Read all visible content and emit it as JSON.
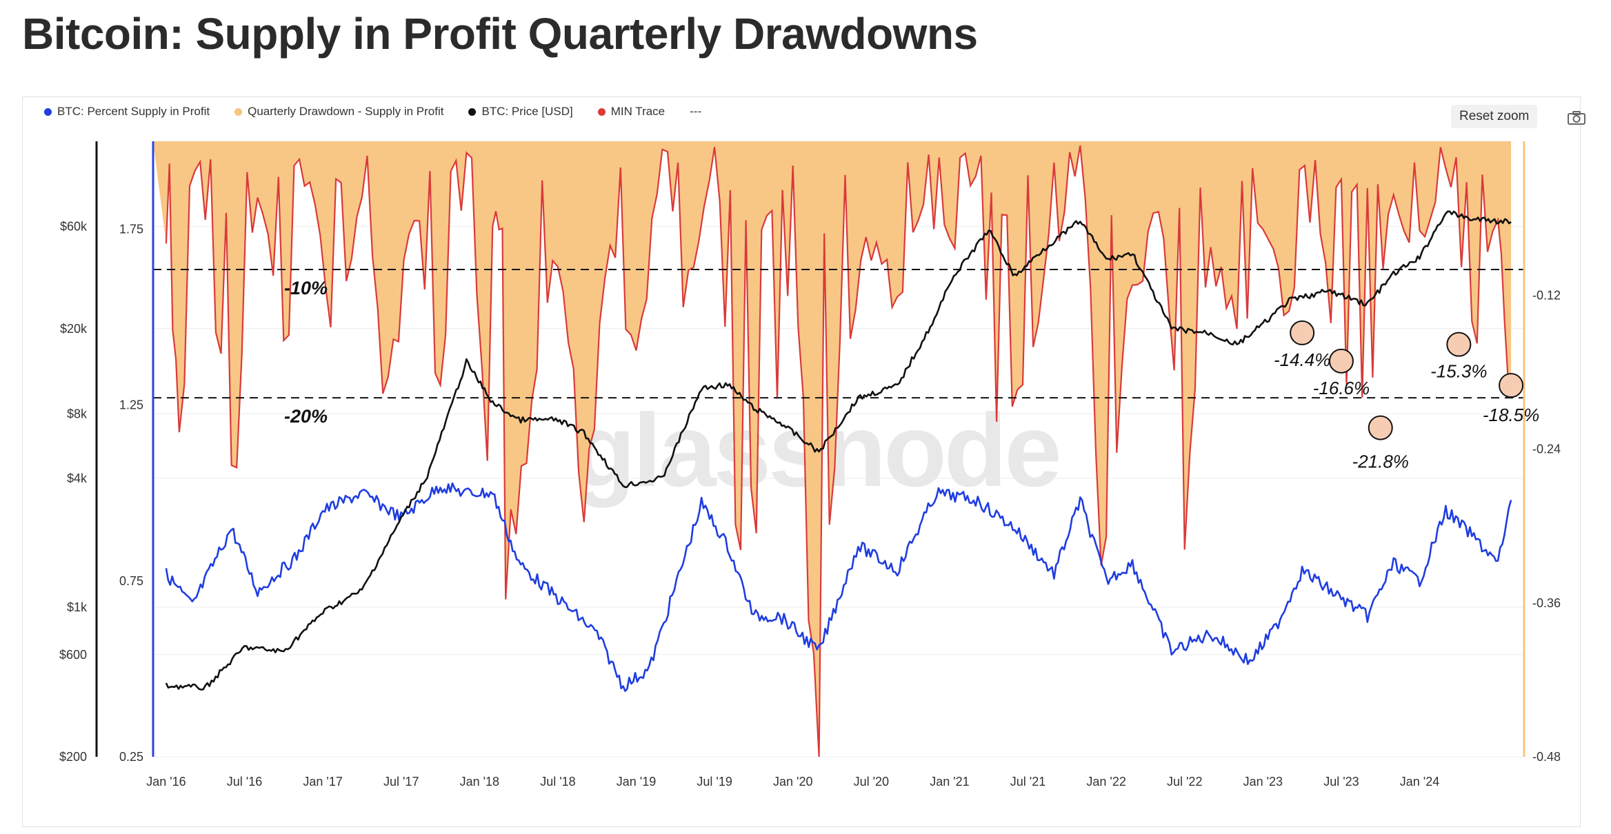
{
  "page": {
    "title": "Bitcoin: Supply in Profit Quarterly Drawdowns"
  },
  "legend": [
    {
      "label": "BTC: Percent Supply in Profit",
      "color": "#1f3de0"
    },
    {
      "label": "Quarterly Drawdown - Supply in Profit",
      "color": "#f8c47e"
    },
    {
      "label": "BTC: Price [USD]",
      "color": "#111111"
    },
    {
      "label": "MIN Trace",
      "color": "#d93a3a"
    },
    {
      "label": "---",
      "color": ""
    }
  ],
  "toolbar": {
    "reset_zoom_label": "Reset zoom",
    "camera_icon": "camera-icon"
  },
  "watermark": "glassnode",
  "colors": {
    "supply": "#1f3de0",
    "drawdown_fill": "#f8c47e",
    "price": "#111111",
    "min_trace": "#d93a3a",
    "marker_fill": "#f6cdb3"
  },
  "chart_data": {
    "type": "line",
    "title": "Bitcoin: Supply in Profit Quarterly Drawdowns",
    "xlim": [
      "2015-12",
      "2024-09"
    ],
    "x_ticks": [
      "Jan '16",
      "Jul '16",
      "Jan '17",
      "Jul '17",
      "Jan '18",
      "Jul '18",
      "Jan '19",
      "Jul '19",
      "Jan '20",
      "Jul '20",
      "Jan '21",
      "Jul '21",
      "Jan '22",
      "Jul '22",
      "Jan '23",
      "Jul '23",
      "Jan '24"
    ],
    "y_axis_price": {
      "scale": "log",
      "ticks": [
        "$200",
        "$600",
        "$1k",
        "$4k",
        "$8k",
        "$20k",
        "$60k"
      ]
    },
    "y_axis_supply": {
      "ticks": [
        "0.25",
        "0.75",
        "1.25",
        "1.75"
      ]
    },
    "y_axis_drawdown": {
      "ticks": [
        "-0.12",
        "-0.24",
        "-0.36",
        "-0.48"
      ],
      "ylim": [
        -0.48,
        0
      ]
    },
    "reference_lines": [
      {
        "label": "-10%",
        "value": -0.1
      },
      {
        "label": "-20%",
        "value": -0.2
      }
    ],
    "annotations": [
      {
        "label": "-14.4%",
        "date": "2023-04",
        "value": -0.144
      },
      {
        "label": "-16.6%",
        "date": "2023-07",
        "value": -0.166
      },
      {
        "label": "-21.8%",
        "date": "2023-10",
        "value": -0.218
      },
      {
        "label": "-15.3%",
        "date": "2024-04",
        "value": -0.153
      },
      {
        "label": "-18.5%",
        "date": "2024-08",
        "value": -0.185
      }
    ],
    "series": [
      {
        "name": "BTC: Price [USD]",
        "axis": "price",
        "x": [
          "2016-01",
          "2016-04",
          "2016-07",
          "2016-10",
          "2017-01",
          "2017-04",
          "2017-07",
          "2017-09",
          "2017-12",
          "2018-02",
          "2018-04",
          "2018-07",
          "2018-09",
          "2018-12",
          "2019-03",
          "2019-06",
          "2019-08",
          "2019-10",
          "2019-12",
          "2020-03",
          "2020-06",
          "2020-09",
          "2020-12",
          "2021-01",
          "2021-04",
          "2021-06",
          "2021-08",
          "2021-11",
          "2022-01",
          "2022-03",
          "2022-06",
          "2022-09",
          "2022-11",
          "2023-01",
          "2023-03",
          "2023-06",
          "2023-09",
          "2023-11",
          "2024-01",
          "2024-03",
          "2024-05",
          "2024-08"
        ],
        "y": [
          430,
          420,
          650,
          620,
          950,
          1200,
          2600,
          4100,
          14000,
          9000,
          7500,
          7500,
          6500,
          3700,
          4000,
          10500,
          11000,
          8500,
          7300,
          5300,
          9500,
          10800,
          23000,
          33000,
          58000,
          35000,
          46000,
          64000,
          42000,
          45000,
          20000,
          19000,
          16800,
          21000,
          27000,
          30000,
          26000,
          36000,
          43000,
          70000,
          65000,
          63000
        ]
      },
      {
        "name": "BTC: Percent Supply in Profit",
        "axis": "supply",
        "x": [
          "2016-01",
          "2016-03",
          "2016-06",
          "2016-08",
          "2016-11",
          "2017-01",
          "2017-04",
          "2017-07",
          "2017-10",
          "2017-12",
          "2018-02",
          "2018-04",
          "2018-07",
          "2018-10",
          "2018-12",
          "2019-02",
          "2019-06",
          "2019-08",
          "2019-10",
          "2019-12",
          "2020-03",
          "2020-06",
          "2020-09",
          "2020-12",
          "2021-03",
          "2021-06",
          "2021-09",
          "2021-11",
          "2022-01",
          "2022-03",
          "2022-06",
          "2022-09",
          "2022-12",
          "2023-02",
          "2023-04",
          "2023-07",
          "2023-09",
          "2023-11",
          "2024-01",
          "2024-03",
          "2024-05",
          "2024-07",
          "2024-08"
        ],
        "y": [
          0.77,
          0.68,
          0.9,
          0.72,
          0.82,
          0.95,
          1.0,
          0.93,
          1.02,
          1.0,
          1.0,
          0.8,
          0.7,
          0.6,
          0.45,
          0.5,
          0.97,
          0.85,
          0.65,
          0.65,
          0.55,
          0.85,
          0.78,
          1.0,
          0.98,
          0.9,
          0.77,
          0.98,
          0.75,
          0.8,
          0.55,
          0.6,
          0.52,
          0.62,
          0.78,
          0.7,
          0.65,
          0.8,
          0.75,
          0.95,
          0.88,
          0.8,
          0.98
        ]
      },
      {
        "name": "Quarterly Drawdown - Supply in Profit",
        "axis": "drawdown",
        "x": [
          "2016-01",
          "2016-02",
          "2016-04",
          "2016-06",
          "2016-08",
          "2016-10",
          "2016-12",
          "2017-02",
          "2017-04",
          "2017-06",
          "2017-08",
          "2017-10",
          "2017-12",
          "2018-02",
          "2018-03",
          "2018-05",
          "2018-07",
          "2018-09",
          "2018-11",
          "2019-01",
          "2019-03",
          "2019-05",
          "2019-07",
          "2019-09",
          "2019-11",
          "2020-01",
          "2020-03",
          "2020-05",
          "2020-07",
          "2020-09",
          "2020-11",
          "2021-01",
          "2021-03",
          "2021-05",
          "2021-07",
          "2021-09",
          "2021-11",
          "2022-01",
          "2022-03",
          "2022-05",
          "2022-07",
          "2022-09",
          "2022-11",
          "2023-01",
          "2023-03",
          "2023-05",
          "2023-07",
          "2023-09",
          "2023-11",
          "2024-01",
          "2024-03",
          "2024-05",
          "2024-07",
          "2024-08"
        ],
        "y": [
          -0.08,
          -0.22,
          -0.06,
          -0.26,
          -0.05,
          -0.15,
          -0.03,
          -0.16,
          -0.04,
          -0.2,
          -0.06,
          -0.18,
          -0.04,
          -0.3,
          -0.36,
          -0.22,
          -0.1,
          -0.26,
          -0.08,
          -0.15,
          -0.03,
          -0.12,
          -0.02,
          -0.33,
          -0.3,
          -0.1,
          -0.45,
          -0.14,
          -0.08,
          -0.12,
          -0.05,
          -0.08,
          -0.03,
          -0.29,
          -0.15,
          -0.08,
          -0.02,
          -0.36,
          -0.12,
          -0.05,
          -0.29,
          -0.1,
          -0.15,
          -0.06,
          -0.14,
          -0.07,
          -0.17,
          -0.22,
          -0.05,
          -0.08,
          -0.02,
          -0.15,
          -0.06,
          -0.19
        ]
      }
    ]
  }
}
